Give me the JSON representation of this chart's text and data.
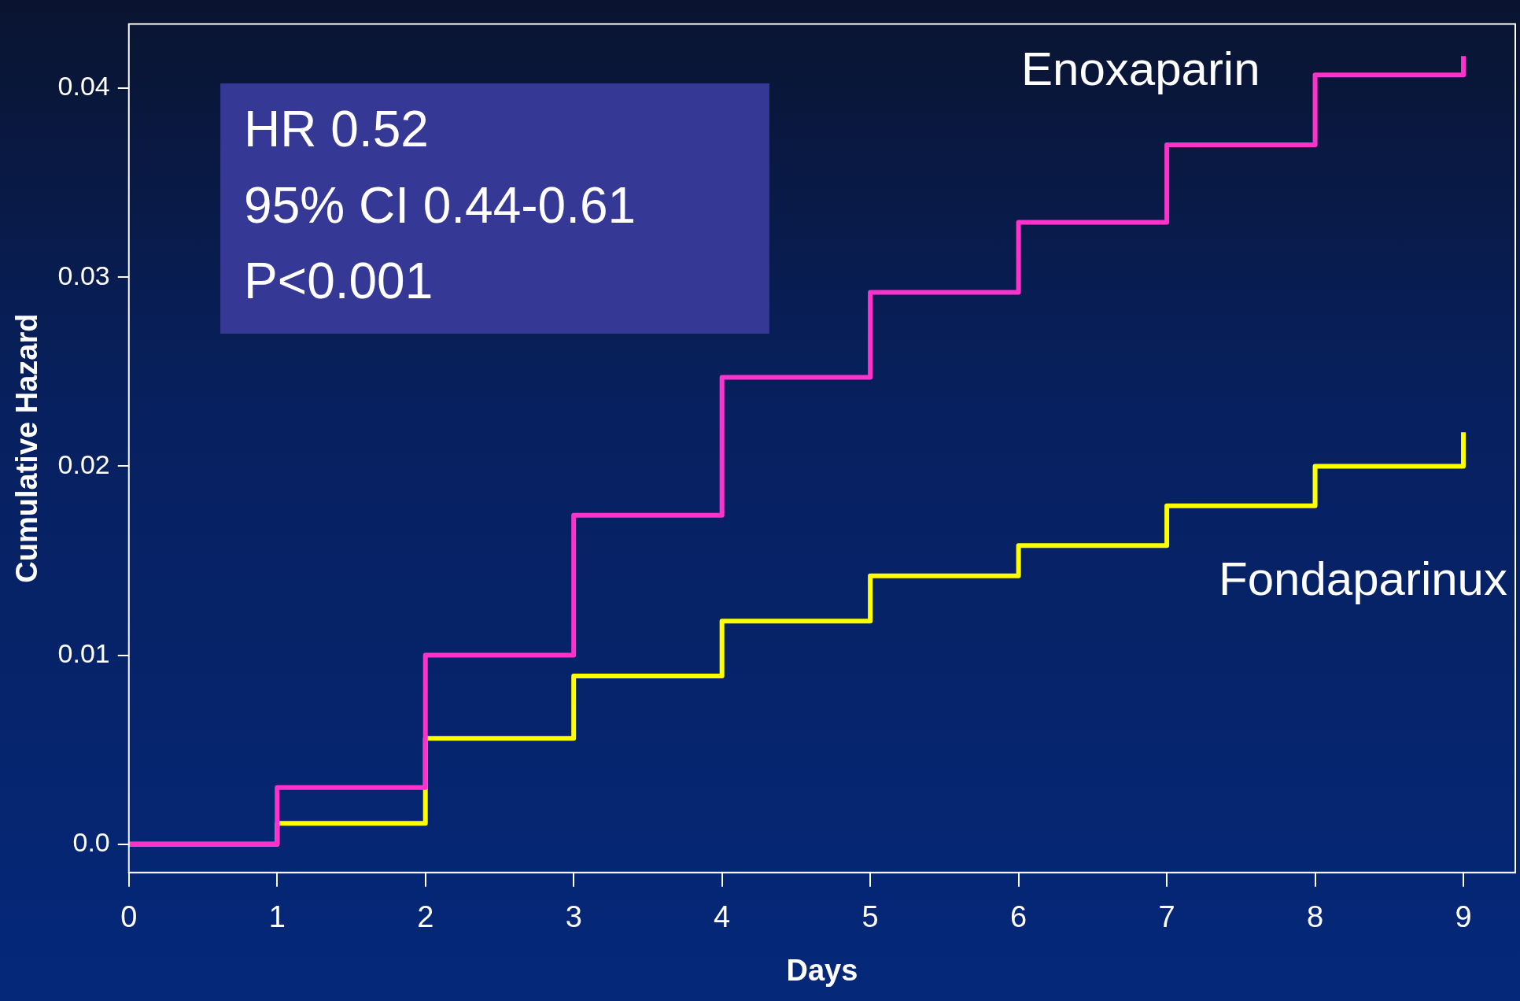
{
  "chart_data": {
    "type": "step",
    "xlabel": "Days",
    "ylabel": "Cumulative Hazard",
    "x": [
      0,
      1,
      2,
      3,
      4,
      5,
      6,
      7,
      8,
      9
    ],
    "series": [
      {
        "name": "Enoxaparin",
        "color": "#ff33cc",
        "values": [
          0,
          0.003,
          0.01,
          0.0174,
          0.0247,
          0.0292,
          0.0329,
          0.037,
          0.0407,
          0.0417
        ]
      },
      {
        "name": "Fondaparinux",
        "color": "#ffff00",
        "values": [
          0,
          0.0011,
          0.0056,
          0.0089,
          0.0118,
          0.0142,
          0.0158,
          0.0179,
          0.02,
          0.0218
        ]
      }
    ],
    "xlim": [
      0,
      9.35
    ],
    "xticks": [
      0,
      1,
      2,
      3,
      4,
      5,
      6,
      7,
      8,
      9
    ],
    "ylim": [
      -0.0015,
      0.0434
    ],
    "yticks": [
      {
        "value": 0,
        "label": "0.0"
      },
      0.01,
      0.02,
      0.03,
      0.04
    ],
    "annotations": [
      "HR 0.52",
      "95% CI 0.44-0.61",
      "P<0.001"
    ],
    "grid": false,
    "legend": false,
    "marker": "none",
    "line_style": "solid"
  }
}
